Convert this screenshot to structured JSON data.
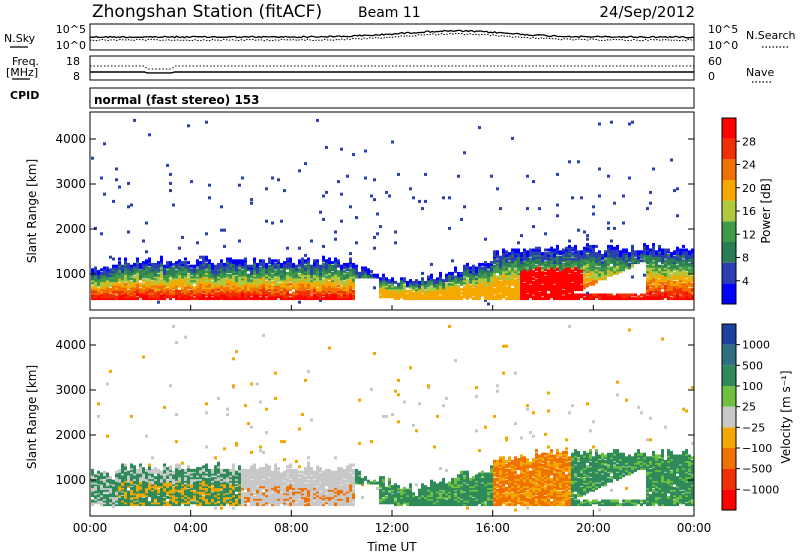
{
  "header": {
    "station": "Zhongshan Station (fitACF)",
    "beam": "Beam 11",
    "date": "24/Sep/2012"
  },
  "top_panel": {
    "left_label": "N.Sky",
    "left_ticks": [
      "10^5",
      "10^0"
    ],
    "right_label": "N.Search",
    "right_ticks": [
      "10^5",
      "10^0"
    ]
  },
  "freq_panel": {
    "left_label_1": "Freq.",
    "left_label_2": "[MHz]",
    "left_ticks": [
      "18",
      "8"
    ],
    "right_label": "Nave",
    "right_ticks": [
      "60",
      "0"
    ]
  },
  "cpid": {
    "label": "CPID",
    "mode": "normal (fast stereo) 153"
  },
  "colors": {
    "power_scale": [
      "#0000ff",
      "#2b3fb0",
      "#2a7d55",
      "#3f9a4a",
      "#b0c840",
      "#f5a800",
      "#f07000",
      "#f03000",
      "#ff0000"
    ],
    "velocity_scale": [
      "#2040a0",
      "#2f6f80",
      "#2f8a5a",
      "#6ec040",
      "#c8c8c8",
      "#f2a800",
      "#f07000",
      "#f03000",
      "#ff0000"
    ]
  },
  "chart_data": [
    {
      "type": "heatmap",
      "quantity": "Power",
      "ylabel": "Slant Range [km]",
      "ylim": [
        200,
        4600
      ],
      "yticks": [
        "1000",
        "2000",
        "3000",
        "4000"
      ],
      "colorbar_label": "Power [dB]",
      "colorbar_ticks": [
        "4",
        "8",
        "12",
        "16",
        "20",
        "24",
        "28"
      ],
      "colorbar_range": [
        0,
        32
      ]
    },
    {
      "type": "heatmap",
      "quantity": "Velocity",
      "ylabel": "Slant Range [km]",
      "ylim": [
        200,
        4600
      ],
      "yticks": [
        "1000",
        "2000",
        "3000",
        "4000"
      ],
      "colorbar_label": "Velocity [m s⁻¹]",
      "colorbar_ticks": [
        "1000",
        "500",
        "100",
        "25",
        "−25",
        "−100",
        "−500",
        "−1000"
      ]
    }
  ],
  "x_axis": {
    "xlabel": "Time UT",
    "xticks": [
      "00:00",
      "04:00",
      "08:00",
      "12:00",
      "16:00",
      "20:00",
      "00:00"
    ],
    "xlim_hours": [
      0,
      24
    ]
  }
}
